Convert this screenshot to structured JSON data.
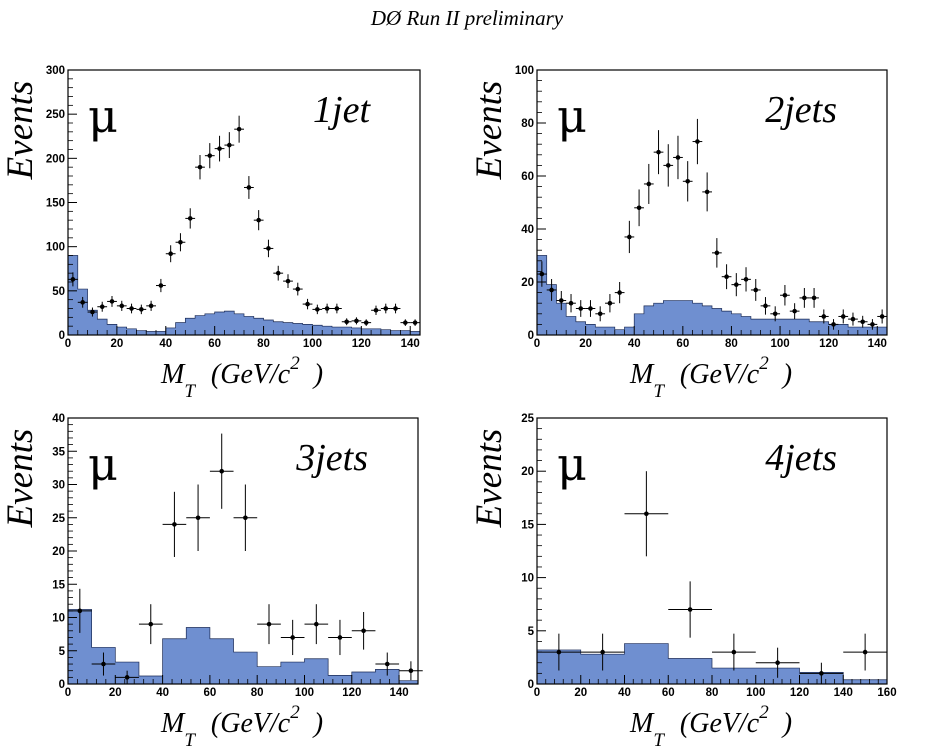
{
  "title": "DØ Run II preliminary",
  "colors": {
    "background_fill": "#6f8fd0",
    "points": "#000000",
    "frame": "#000000"
  },
  "chart_data": [
    {
      "type": "histogram",
      "channel_label": "μ",
      "jet_label": "1jet",
      "ylabel": "Events",
      "xlabel_main": "M",
      "xlabel_sub": "T",
      "xlabel_unit": "(GeV/c",
      "xlabel_sup": "2",
      "xlabel_close": ")",
      "xlim": [
        0,
        144
      ],
      "ylim": [
        0,
        300
      ],
      "xticks": [
        0,
        20,
        40,
        60,
        80,
        100,
        120,
        140
      ],
      "yticks": [
        0,
        50,
        100,
        150,
        200,
        250,
        300
      ],
      "background": {
        "bin_edges": [
          0,
          4,
          8,
          12,
          16,
          20,
          24,
          28,
          32,
          36,
          40,
          44,
          48,
          52,
          56,
          60,
          64,
          68,
          72,
          76,
          80,
          84,
          88,
          92,
          96,
          100,
          104,
          108,
          112,
          116,
          120,
          124,
          128,
          132,
          136,
          140,
          144
        ],
        "values": [
          90,
          52,
          28,
          18,
          12,
          9,
          7,
          5,
          4,
          4,
          8,
          14,
          19,
          22,
          24,
          26,
          27,
          24,
          21,
          19,
          17,
          15,
          14,
          13,
          12,
          11,
          10,
          9,
          9,
          8,
          7,
          7,
          6,
          5,
          5,
          4
        ]
      },
      "data": {
        "x": [
          2,
          6,
          10,
          14,
          18,
          22,
          26,
          30,
          34,
          38,
          42,
          46,
          50,
          54,
          58,
          62,
          66,
          70,
          74,
          78,
          82,
          86,
          90,
          94,
          98,
          102,
          106,
          110,
          114,
          118,
          122,
          126,
          130,
          134,
          138,
          142
        ],
        "y": [
          63,
          37,
          26,
          32,
          38,
          33,
          30,
          29,
          33,
          56,
          92,
          105,
          132,
          190,
          203,
          211,
          215,
          233,
          167,
          130,
          98,
          70,
          61,
          52,
          35,
          29,
          30,
          30,
          15,
          16,
          14,
          28,
          30,
          30,
          14,
          14
        ],
        "xerr": 2
      }
    },
    {
      "type": "histogram",
      "channel_label": "μ",
      "jet_label": "2jets",
      "ylabel": "Events",
      "xlabel_main": "M",
      "xlabel_sub": "T",
      "xlabel_unit": "(GeV/c",
      "xlabel_sup": "2",
      "xlabel_close": ")",
      "xlim": [
        0,
        144
      ],
      "ylim": [
        0,
        100
      ],
      "xticks": [
        0,
        20,
        40,
        60,
        80,
        100,
        120,
        140
      ],
      "yticks": [
        0,
        20,
        40,
        60,
        80,
        100
      ],
      "background": {
        "bin_edges": [
          0,
          4,
          8,
          12,
          16,
          20,
          24,
          28,
          32,
          36,
          40,
          44,
          48,
          52,
          56,
          60,
          64,
          68,
          72,
          76,
          80,
          84,
          88,
          92,
          96,
          100,
          104,
          108,
          112,
          116,
          120,
          124,
          128,
          132,
          136,
          140,
          144
        ],
        "values": [
          30,
          19,
          12,
          7,
          5,
          4,
          3,
          3,
          2,
          3,
          8,
          11,
          12,
          13,
          13,
          13,
          12,
          11,
          10,
          9,
          8,
          7,
          6,
          6,
          6,
          6,
          6,
          6,
          5,
          5,
          4,
          4,
          3,
          3,
          3,
          3
        ]
      },
      "data": {
        "x": [
          2,
          6,
          10,
          14,
          18,
          22,
          26,
          30,
          34,
          38,
          42,
          46,
          50,
          54,
          58,
          62,
          66,
          70,
          74,
          78,
          82,
          86,
          90,
          94,
          98,
          102,
          106,
          110,
          114,
          118,
          122,
          126,
          130,
          134,
          138,
          142
        ],
        "y": [
          23,
          17,
          13,
          12,
          10,
          10,
          8,
          12,
          16,
          37,
          48,
          57,
          69,
          64,
          67,
          58,
          73,
          54,
          31,
          22,
          19,
          21,
          17,
          11,
          8,
          15,
          9,
          14,
          14,
          7,
          4,
          7,
          6,
          5,
          4,
          7
        ],
        "xerr": 2
      }
    },
    {
      "type": "histogram",
      "channel_label": "μ",
      "jet_label": "3jets",
      "ylabel": "Events",
      "xlabel_main": "M",
      "xlabel_sub": "T",
      "xlabel_unit": "(GeV/c",
      "xlabel_sup": "2",
      "xlabel_close": ")",
      "xlim": [
        0,
        148
      ],
      "ylim": [
        0,
        40
      ],
      "xticks": [
        0,
        20,
        40,
        60,
        80,
        100,
        120,
        140
      ],
      "yticks": [
        0,
        5,
        10,
        15,
        20,
        25,
        30,
        35,
        40
      ],
      "background": {
        "bin_edges": [
          0,
          10,
          20,
          30,
          40,
          50,
          60,
          70,
          80,
          90,
          100,
          110,
          120,
          130,
          140,
          148
        ],
        "values": [
          11.2,
          5.5,
          3.3,
          1.2,
          6.8,
          8.5,
          6.8,
          4.8,
          2.6,
          3.3,
          3.8,
          1.3,
          1.8,
          2.2,
          0.5
        ]
      },
      "data": {
        "x": [
          5,
          15,
          25,
          35,
          45,
          55,
          65,
          75,
          85,
          95,
          105,
          115,
          125,
          135,
          145
        ],
        "y": [
          11,
          3,
          1,
          9,
          24,
          25,
          32,
          25,
          9,
          7,
          9,
          7,
          8,
          3,
          2
        ],
        "xerr": 5
      }
    },
    {
      "type": "histogram",
      "channel_label": "μ",
      "jet_label": "4jets",
      "ylabel": "Events",
      "xlabel_main": "M",
      "xlabel_sub": "T",
      "xlabel_unit": "(GeV/c",
      "xlabel_sup": "2",
      "xlabel_close": ")",
      "xlim": [
        0,
        160
      ],
      "ylim": [
        0,
        25
      ],
      "xticks": [
        0,
        20,
        40,
        60,
        80,
        100,
        120,
        140,
        160
      ],
      "yticks": [
        0,
        5,
        10,
        15,
        20,
        25
      ],
      "background": {
        "bin_edges": [
          0,
          20,
          40,
          60,
          80,
          100,
          120,
          140,
          160
        ],
        "values": [
          3.2,
          2.8,
          3.8,
          2.4,
          1.5,
          1.5,
          1.1,
          0.4
        ]
      },
      "data": {
        "x": [
          10,
          30,
          50,
          70,
          90,
          110,
          130,
          150
        ],
        "y": [
          3,
          3,
          16,
          7,
          3,
          2,
          1,
          3
        ],
        "xerr": 10
      }
    }
  ]
}
